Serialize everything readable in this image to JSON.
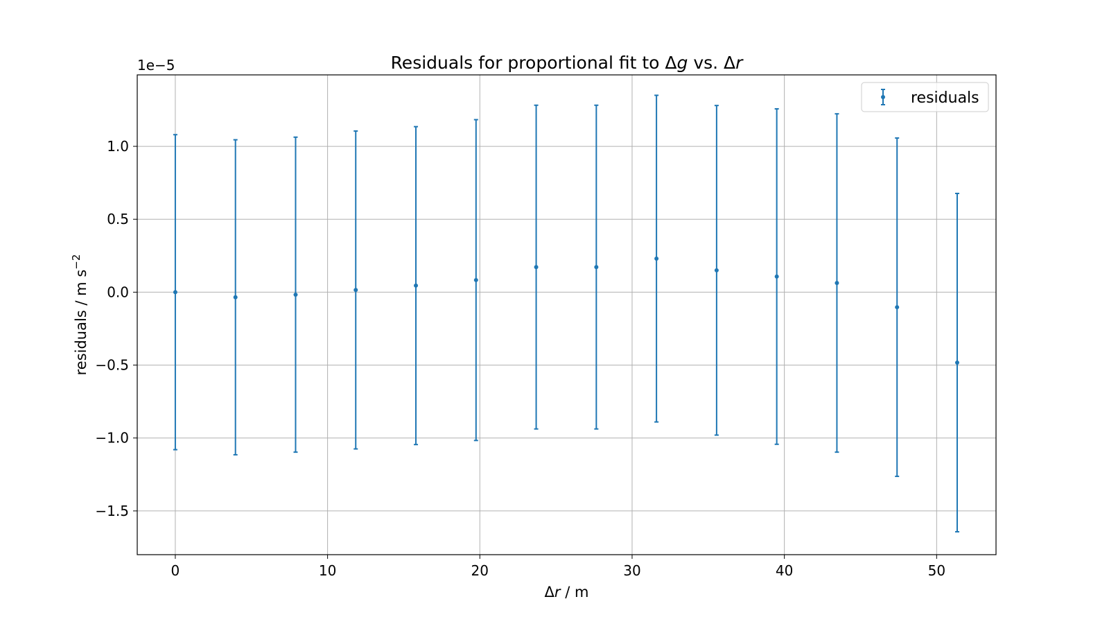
{
  "chart_data": {
    "type": "scatter",
    "title": "Residuals for proportional fit to Δg vs. Δr",
    "title_parts": [
      {
        "text": "Residuals for proportional fit to Δ",
        "italic": false
      },
      {
        "text": "g",
        "italic": true
      },
      {
        "text": " vs. Δ",
        "italic": false
      },
      {
        "text": "r",
        "italic": true
      }
    ],
    "xlabel_parts": [
      {
        "text": "Δ",
        "italic": false
      },
      {
        "text": "r",
        "italic": true
      },
      {
        "text": " / m",
        "italic": false
      }
    ],
    "ylabel": "residuals / m s",
    "ylabel_sup": "−2",
    "offset_text": "1e−5",
    "xlim": [
      -2.5,
      53.9
    ],
    "ylim": [
      -1.8,
      1.49
    ],
    "xticks": [
      0,
      10,
      20,
      30,
      40,
      50
    ],
    "xtick_labels": [
      "0",
      "10",
      "20",
      "30",
      "40",
      "50"
    ],
    "yticks": [
      -1.5,
      -1.0,
      -0.5,
      0.0,
      0.5,
      1.0
    ],
    "ytick_labels": [
      "−1.5",
      "−1.0",
      "−0.5",
      "0.0",
      "0.5",
      "1.0"
    ],
    "grid": true,
    "legend": {
      "position": "top-right",
      "label": "residuals"
    },
    "color": "#1f77b4",
    "series": [
      {
        "name": "residuals",
        "x": [
          0,
          3.95,
          7.9,
          11.85,
          15.8,
          19.75,
          23.7,
          27.65,
          31.6,
          35.55,
          39.5,
          43.45,
          47.4,
          51.35
        ],
        "y": [
          0.0,
          -0.035,
          -0.017,
          0.015,
          0.045,
          0.083,
          0.172,
          0.172,
          0.23,
          0.15,
          0.107,
          0.063,
          -0.103,
          -0.483
        ],
        "yerr": [
          1.08,
          1.08,
          1.08,
          1.09,
          1.09,
          1.1,
          1.11,
          1.11,
          1.12,
          1.13,
          1.15,
          1.16,
          1.16,
          1.16
        ]
      }
    ]
  }
}
